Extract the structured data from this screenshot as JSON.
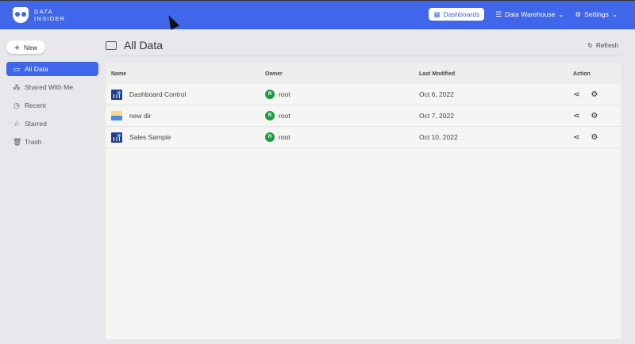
{
  "header": {
    "logo_line1": "DATA",
    "logo_line2": "INSIDER",
    "nav": [
      {
        "label": "Dashboards",
        "icon": "dashboard-icon",
        "active": true
      },
      {
        "label": "Data Warehouse",
        "icon": "database-icon",
        "dropdown": true
      },
      {
        "label": "Settings",
        "icon": "gear-icon",
        "dropdown": true
      }
    ],
    "chevron": "⌄"
  },
  "sidebar": {
    "new_label": "New",
    "items": [
      {
        "label": "All Data",
        "icon": "folder-icon",
        "active": true
      },
      {
        "label": "Shared With Me",
        "icon": "share-icon"
      },
      {
        "label": "Recent",
        "icon": "clock-icon"
      },
      {
        "label": "Starred",
        "icon": "star-icon"
      },
      {
        "label": "Trash",
        "icon": "trash-icon"
      }
    ]
  },
  "main": {
    "title": "All Data",
    "refresh_label": "Refresh",
    "columns": [
      "Name",
      "Owner",
      "Last Modified",
      "Action"
    ],
    "rows": [
      {
        "name": "Dashboard Control",
        "type": "dashboard",
        "owner_initial": "R",
        "owner": "root",
        "modified": "Oct 6, 2022"
      },
      {
        "name": "new dir",
        "type": "folder",
        "owner_initial": "R",
        "owner": "root",
        "modified": "Oct 7, 2022"
      },
      {
        "name": "Sales Sample",
        "type": "dashboard",
        "owner_initial": "R",
        "owner": "root",
        "modified": "Oct 10, 2022"
      }
    ]
  },
  "colors": {
    "brand": "#4066ea",
    "avatar": "#1e9c45"
  }
}
